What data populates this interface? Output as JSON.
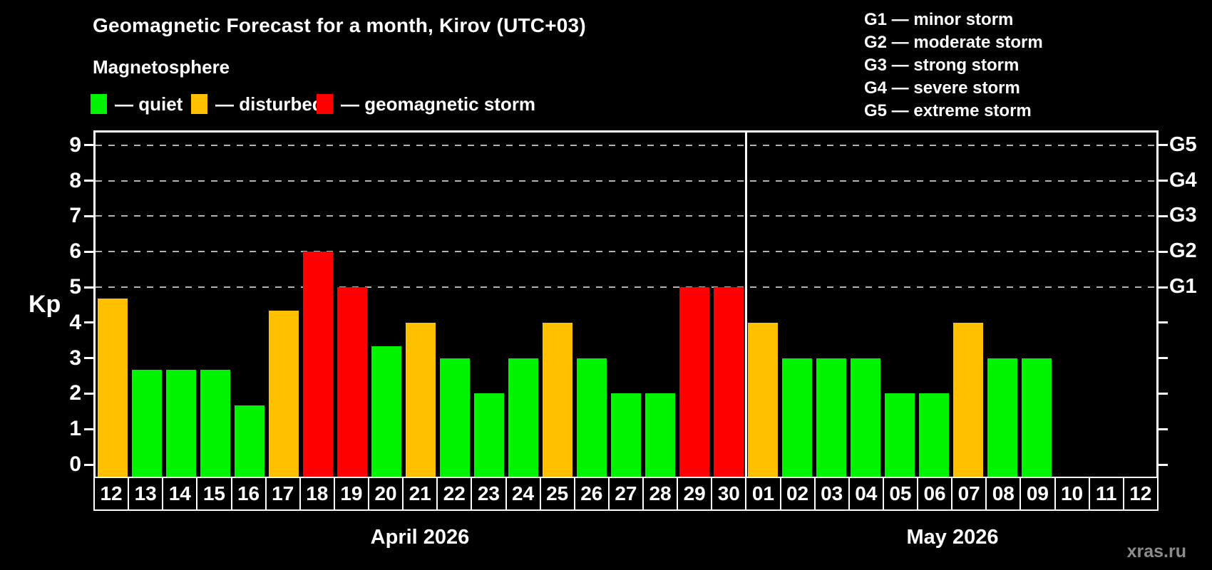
{
  "title": "Geomagnetic Forecast for a month, Kirov (UTC+03)",
  "subtitle": "Magnetosphere",
  "watermark": "xras.ru",
  "colors": {
    "quiet": "#00f400",
    "disturbed": "#ffc000",
    "storm": "#ff0000",
    "grid": "#b3b3b3",
    "axis": "#ffffff",
    "watermark": "#8c8c8c"
  },
  "legend": {
    "items": [
      {
        "key": "quiet",
        "label": "— quiet"
      },
      {
        "key": "disturbed",
        "label": "— disturbed"
      },
      {
        "key": "storm",
        "label": "— geomagnetic storm"
      }
    ]
  },
  "g_legend": {
    "lines": [
      "G1 — minor storm",
      "G2 — moderate storm",
      "G3 — strong storm",
      "G4 — severe storm",
      "G5 — extreme storm"
    ]
  },
  "chart_data": {
    "type": "bar",
    "title": "Geomagnetic Forecast for a month, Kirov (UTC+03)",
    "ylabel": "Kp",
    "ylim": [
      0,
      9
    ],
    "yticks": [
      0,
      1,
      2,
      3,
      4,
      5,
      6,
      7,
      8,
      9
    ],
    "grid_levels": [
      5,
      6,
      7,
      8,
      9
    ],
    "right_axis_labels": [
      {
        "level": 5,
        "label": "G1"
      },
      {
        "level": 6,
        "label": "G2"
      },
      {
        "level": 7,
        "label": "G3"
      },
      {
        "level": 8,
        "label": "G4"
      },
      {
        "level": 9,
        "label": "G5"
      }
    ],
    "sections": [
      {
        "label": "April 2026",
        "start_index": 0,
        "num_days": 19
      },
      {
        "label": "May 2026",
        "start_index": 19,
        "num_days": 12
      }
    ],
    "bars": [
      {
        "day": "12",
        "kp": 4.67,
        "status": "disturbed"
      },
      {
        "day": "13",
        "kp": 2.67,
        "status": "quiet"
      },
      {
        "day": "14",
        "kp": 2.67,
        "status": "quiet"
      },
      {
        "day": "15",
        "kp": 2.67,
        "status": "quiet"
      },
      {
        "day": "16",
        "kp": 1.67,
        "status": "quiet"
      },
      {
        "day": "17",
        "kp": 4.33,
        "status": "disturbed"
      },
      {
        "day": "18",
        "kp": 6.0,
        "status": "storm"
      },
      {
        "day": "19",
        "kp": 5.0,
        "status": "storm"
      },
      {
        "day": "20",
        "kp": 3.33,
        "status": "quiet"
      },
      {
        "day": "21",
        "kp": 4.0,
        "status": "disturbed"
      },
      {
        "day": "22",
        "kp": 3.0,
        "status": "quiet"
      },
      {
        "day": "23",
        "kp": 2.0,
        "status": "quiet"
      },
      {
        "day": "24",
        "kp": 3.0,
        "status": "quiet"
      },
      {
        "day": "25",
        "kp": 4.0,
        "status": "disturbed"
      },
      {
        "day": "26",
        "kp": 3.0,
        "status": "quiet"
      },
      {
        "day": "27",
        "kp": 2.0,
        "status": "quiet"
      },
      {
        "day": "28",
        "kp": 2.0,
        "status": "quiet"
      },
      {
        "day": "29",
        "kp": 5.0,
        "status": "storm"
      },
      {
        "day": "30",
        "kp": 5.0,
        "status": "storm"
      },
      {
        "day": "01",
        "kp": 4.0,
        "status": "disturbed"
      },
      {
        "day": "02",
        "kp": 3.0,
        "status": "quiet"
      },
      {
        "day": "03",
        "kp": 3.0,
        "status": "quiet"
      },
      {
        "day": "04",
        "kp": 3.0,
        "status": "quiet"
      },
      {
        "day": "05",
        "kp": 2.0,
        "status": "quiet"
      },
      {
        "day": "06",
        "kp": 2.0,
        "status": "quiet"
      },
      {
        "day": "07",
        "kp": 4.0,
        "status": "disturbed"
      },
      {
        "day": "08",
        "kp": 3.0,
        "status": "quiet"
      },
      {
        "day": "09",
        "kp": 3.0,
        "status": "quiet"
      },
      {
        "day": "10",
        "kp": null,
        "status": "none"
      },
      {
        "day": "11",
        "kp": null,
        "status": "none"
      },
      {
        "day": "12",
        "kp": null,
        "status": "none"
      }
    ]
  }
}
